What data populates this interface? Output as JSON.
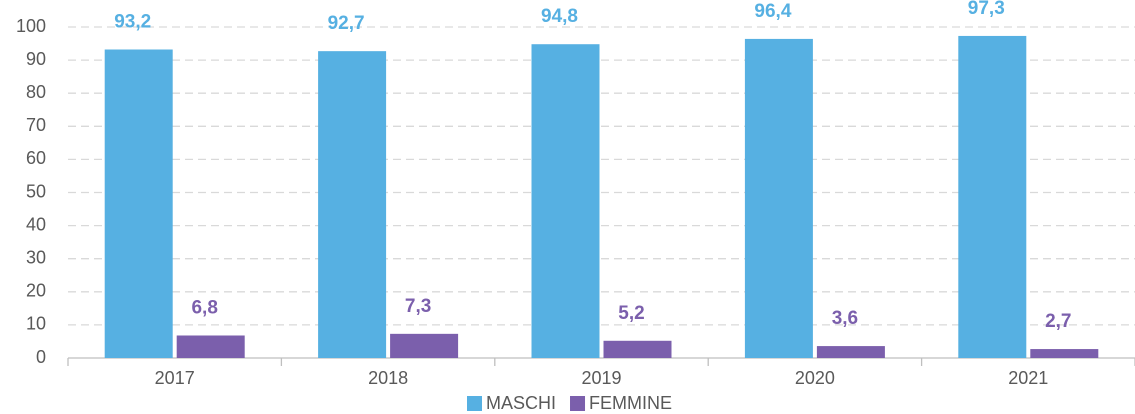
{
  "chart_data": {
    "type": "bar",
    "categories": [
      "2017",
      "2018",
      "2019",
      "2020",
      "2021"
    ],
    "series": [
      {
        "name": "MASCHI",
        "color": "#56b0e2",
        "values": [
          93.2,
          92.7,
          94.8,
          96.4,
          97.3
        ],
        "value_labels": [
          "93,2",
          "92,7",
          "94,8",
          "96,4",
          "97,3"
        ]
      },
      {
        "name": "FEMMINE",
        "color": "#7b5fac",
        "values": [
          6.8,
          7.3,
          5.2,
          3.6,
          2.7
        ],
        "value_labels": [
          "6,8",
          "7,3",
          "5,2",
          "3,6",
          "2,7"
        ]
      }
    ],
    "ylim": [
      0,
      100
    ],
    "yticks": [
      0,
      10,
      20,
      30,
      40,
      50,
      60,
      70,
      80,
      90,
      100
    ],
    "grid": true,
    "legend": "bottom"
  }
}
